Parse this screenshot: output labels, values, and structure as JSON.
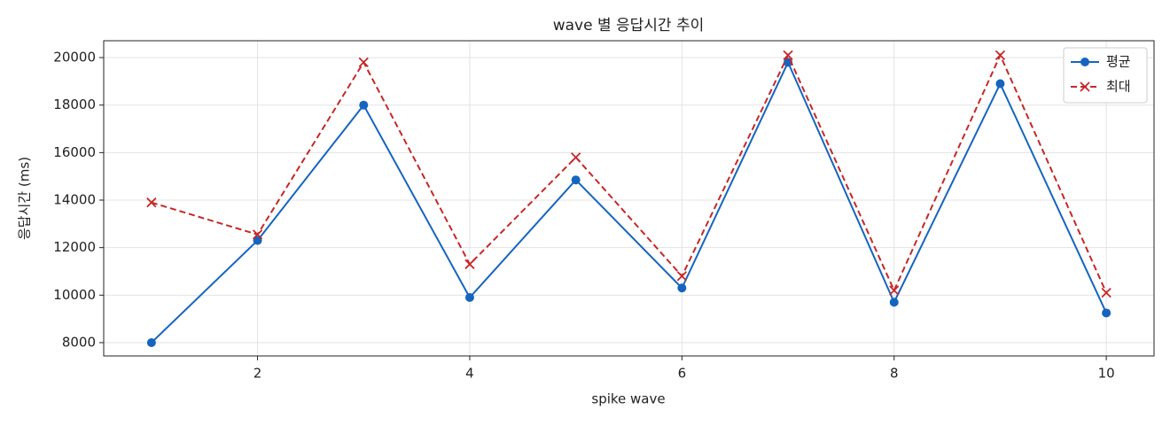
{
  "chart_data": {
    "type": "line",
    "title": "wave 별 응답시간 추이",
    "xlabel": "spike wave",
    "ylabel": "응답시간 (ms)",
    "x": [
      1,
      2,
      3,
      4,
      5,
      6,
      7,
      8,
      9,
      10
    ],
    "series": [
      {
        "name": "평균",
        "color": "#1565c0",
        "marker": "o",
        "linestyle": "solid",
        "values": [
          8000,
          12300,
          18000,
          9900,
          14850,
          10300,
          19800,
          9700,
          18900,
          9250
        ]
      },
      {
        "name": "최대",
        "color": "#c62828",
        "marker": "x",
        "linestyle": "dashed",
        "values": [
          13900,
          12550,
          19800,
          11300,
          15800,
          10800,
          20100,
          10200,
          20100,
          10100
        ]
      }
    ],
    "xlim": [
      0.55,
      10.45
    ],
    "xticks": [
      2,
      4,
      6,
      8,
      10
    ],
    "ylim": [
      7440,
      20710
    ],
    "yticks": [
      8000,
      10000,
      12000,
      14000,
      16000,
      18000,
      20000
    ],
    "grid": true,
    "legend": "upper right"
  }
}
